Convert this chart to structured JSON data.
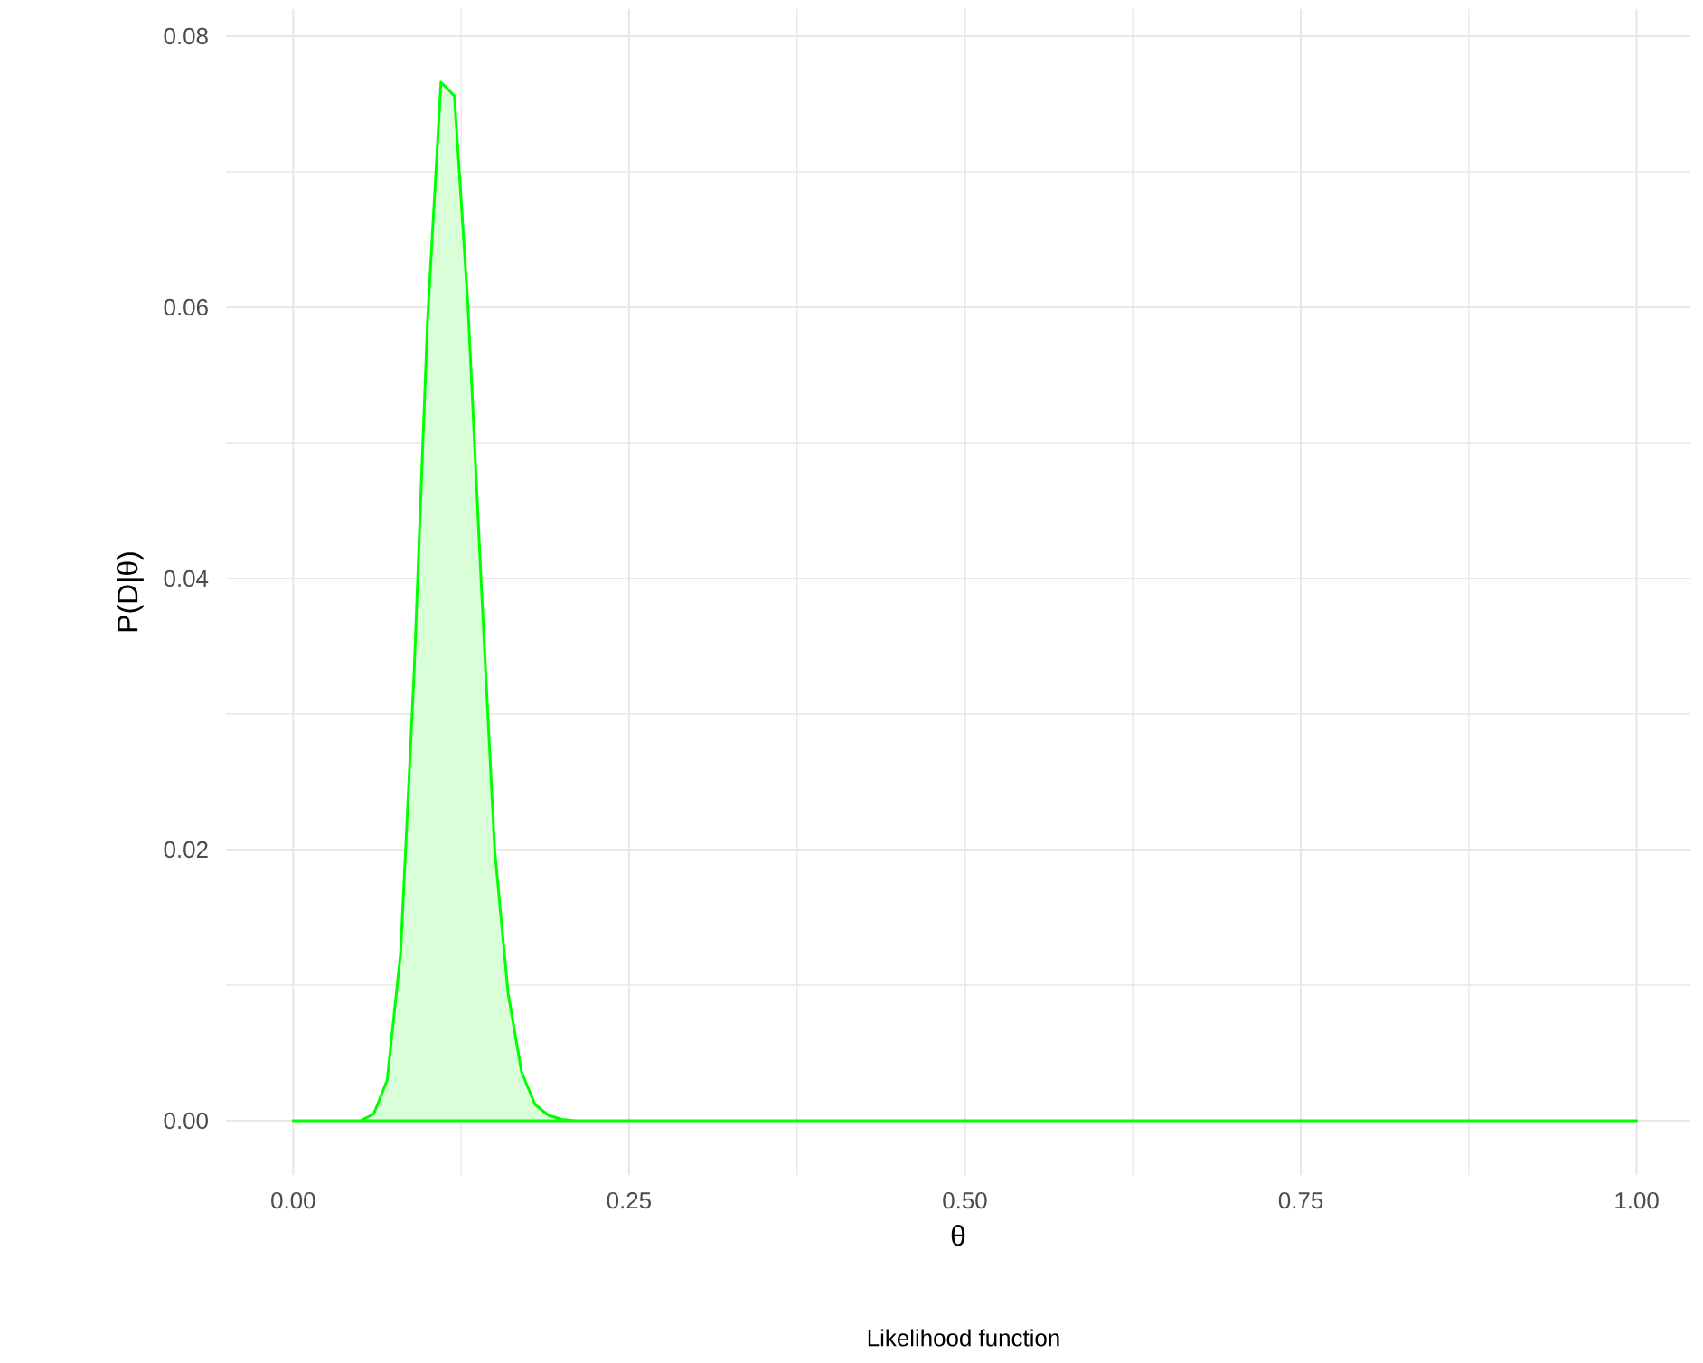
{
  "chart_data": {
    "type": "area",
    "xlabel": "θ",
    "ylabel": "P(D|θ)",
    "annotations": [
      "Likelihood function"
    ],
    "x": [
      0,
      0.05,
      0.06,
      0.07,
      0.08,
      0.09,
      0.1,
      0.11,
      0.12,
      0.13,
      0.14,
      0.15,
      0.16,
      0.17,
      0.18,
      0.19,
      0.2,
      0.21,
      1.0
    ],
    "series": [
      {
        "color": "#00ff00",
        "values": [
          0,
          0,
          0.0005,
          0.003,
          0.0124,
          0.033,
          0.059,
          0.0766,
          0.0756,
          0.0603,
          0.0396,
          0.02,
          0.0094,
          0.0036,
          0.0012,
          0.0004,
          0.0001,
          0,
          0
        ]
      }
    ],
    "xlim": [
      -0.05,
      1.04
    ],
    "ylim": [
      -0.004,
      0.082
    ],
    "xticks": [
      {
        "value": 0,
        "label": "0.00"
      },
      {
        "value": 0.25,
        "label": "0.25"
      },
      {
        "value": 0.5,
        "label": "0.50"
      },
      {
        "value": 0.75,
        "label": "0.75"
      },
      {
        "value": 1,
        "label": "1.00"
      }
    ],
    "yticks": [
      {
        "value": 0,
        "label": "0.00"
      },
      {
        "value": 0.02,
        "label": "0.02"
      },
      {
        "value": 0.04,
        "label": "0.04"
      },
      {
        "value": 0.06,
        "label": "0.06"
      },
      {
        "value": 0.08,
        "label": "0.08"
      }
    ],
    "grid": true
  }
}
